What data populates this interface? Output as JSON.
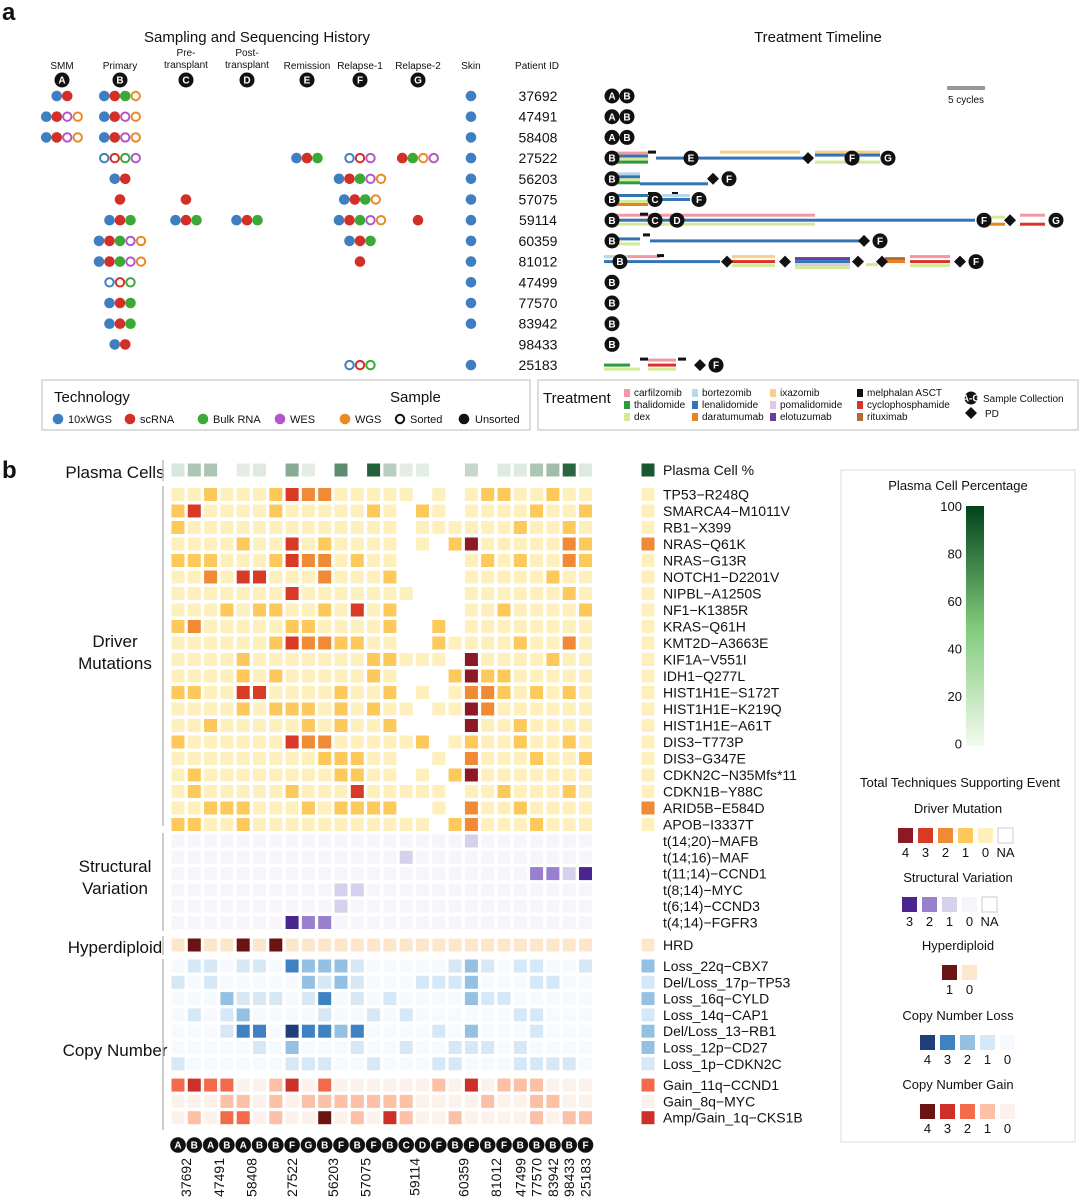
{
  "panel_a": {
    "label": "a",
    "sampling_title": "Sampling and Sequencing History",
    "treatment_title": "Treatment Timeline",
    "patient_id_header": "Patient ID",
    "skin_header": "Skin",
    "scale_label": "5 cycles",
    "stages": [
      {
        "name": "SMM",
        "letter": "A"
      },
      {
        "name": "Primary",
        "letter": "B"
      },
      {
        "name": "Pre-\ntransplant",
        "letter": "C"
      },
      {
        "name": "Post-\ntransplant",
        "letter": "D"
      },
      {
        "name": "Remission",
        "letter": "E"
      },
      {
        "name": "Relapse-1",
        "letter": "F"
      },
      {
        "name": "Relapse-2",
        "letter": "G"
      }
    ],
    "patients": [
      {
        "id": "37692",
        "samples": {
          "A": [
            "bu",
            "ru"
          ],
          "B": [
            "bu",
            "ru",
            "gu",
            "os"
          ]
        },
        "skin": true,
        "timeline": [
          "A",
          "B"
        ]
      },
      {
        "id": "47491",
        "samples": {
          "A": [
            "bu",
            "ru",
            "ps",
            "os"
          ],
          "B": [
            "bu",
            "ru",
            "ps",
            "os"
          ]
        },
        "skin": true,
        "timeline": [
          "A",
          "B"
        ]
      },
      {
        "id": "58408",
        "samples": {
          "A": [
            "bu",
            "ru",
            "ps",
            "os"
          ],
          "B": [
            "bu",
            "ru",
            "ps",
            "os"
          ]
        },
        "skin": true,
        "timeline": [
          "A",
          "B"
        ]
      },
      {
        "id": "27522",
        "samples": {
          "B": [
            "bs",
            "rs",
            "gs",
            "ps"
          ],
          "E": [
            "bu",
            "ru",
            "gu"
          ],
          "F": [
            "bs",
            "rs",
            "ps"
          ],
          "G": [
            "ru",
            "gu",
            "os",
            "ps"
          ]
        },
        "skin": true,
        "timeline": [
          "B",
          "E",
          "F",
          "G"
        ]
      },
      {
        "id": "56203",
        "samples": {
          "B": [
            "bu",
            "ru"
          ],
          "F": [
            "bu",
            "ru",
            "gu",
            "ps",
            "os"
          ]
        },
        "skin": true,
        "timeline": [
          "B",
          "F"
        ]
      },
      {
        "id": "57075",
        "samples": {
          "B": [
            "ru"
          ],
          "C": [
            "ru"
          ],
          "F": [
            "bu",
            "ru",
            "gu",
            "os"
          ]
        },
        "skin": true,
        "timeline": [
          "B",
          "C",
          "F"
        ]
      },
      {
        "id": "59114",
        "samples": {
          "B": [
            "bu",
            "ru",
            "gu"
          ],
          "C": [
            "bu",
            "ru",
            "gu"
          ],
          "D": [
            "bu",
            "ru",
            "gu"
          ],
          "F": [
            "bu",
            "ru",
            "gu",
            "ps",
            "os"
          ],
          "G": [
            "ru"
          ]
        },
        "skin": true,
        "timeline": [
          "B",
          "C",
          "D",
          "F",
          "G"
        ]
      },
      {
        "id": "60359",
        "samples": {
          "B": [
            "bu",
            "ru",
            "gu",
            "ps",
            "os"
          ],
          "F": [
            "bu",
            "ru",
            "gu"
          ]
        },
        "skin": true,
        "timeline": [
          "B",
          "F"
        ]
      },
      {
        "id": "81012",
        "samples": {
          "B": [
            "bu",
            "ru",
            "gu",
            "ps",
            "os"
          ],
          "F": [
            "ru"
          ]
        },
        "skin": true,
        "timeline": [
          "B",
          "F"
        ]
      },
      {
        "id": "47499",
        "samples": {
          "B": [
            "bs",
            "rs",
            "gs"
          ]
        },
        "skin": true,
        "timeline": [
          "B"
        ]
      },
      {
        "id": "77570",
        "samples": {
          "B": [
            "bu",
            "ru",
            "gu"
          ]
        },
        "skin": true,
        "timeline": [
          "B"
        ]
      },
      {
        "id": "83942",
        "samples": {
          "B": [
            "bu",
            "ru",
            "gu"
          ]
        },
        "skin": true,
        "timeline": [
          "B"
        ]
      },
      {
        "id": "98433",
        "samples": {
          "B": [
            "bu",
            "ru"
          ]
        },
        "skin": false,
        "timeline": [
          "B"
        ]
      },
      {
        "id": "25183",
        "samples": {
          "F": [
            "bs",
            "rs",
            "gs"
          ]
        },
        "skin": true,
        "timeline": [
          "F"
        ]
      }
    ],
    "technology_legend": {
      "title": "Technology",
      "items": [
        {
          "label": "10xWGS",
          "color": "#3f7fc1"
        },
        {
          "label": "scRNA",
          "color": "#d42f26"
        },
        {
          "label": "Bulk RNA",
          "color": "#3aa935"
        },
        {
          "label": "WES",
          "color": "#b157c8"
        },
        {
          "label": "WGS",
          "color": "#ea8a24"
        }
      ]
    },
    "sample_legend": {
      "title": "Sample",
      "items": [
        {
          "label": "Sorted"
        },
        {
          "label": "Unsorted"
        }
      ]
    },
    "treatment_legend": {
      "title": "Treatment",
      "items": [
        {
          "label": "carfilzomib",
          "color": "#f29aa3"
        },
        {
          "label": "thalidomide",
          "color": "#2e9a3c"
        },
        {
          "label": "dex",
          "color": "#d3ea9b"
        },
        {
          "label": "bortezomib",
          "color": "#b8d7e8"
        },
        {
          "label": "lenalidomide",
          "color": "#3474b5"
        },
        {
          "label": "daratumumab",
          "color": "#e8831f"
        },
        {
          "label": "ixazomib",
          "color": "#f8cf86"
        },
        {
          "label": "pomalidomide",
          "color": "#e2c6e3"
        },
        {
          "label": "elotuzumab",
          "color": "#6a3ea1"
        },
        {
          "label": "melphalan ASCT",
          "color": "#111111"
        },
        {
          "label": "cyclophosphamide",
          "color": "#d9342b"
        },
        {
          "label": "rituximab",
          "color": "#b56a35"
        }
      ],
      "sample_collection_label": "Sample Collection",
      "sample_collection_glyph": "A-G",
      "pd_label": "PD"
    }
  },
  "panel_b": {
    "label": "b",
    "sections": [
      {
        "name": "Plasma Cells",
        "rows": [
          "Plasma Cell %"
        ]
      },
      {
        "name": "Driver\nMutations",
        "rows": [
          "TP53−R248Q",
          "SMARCA4−M1011V",
          "RB1−X399",
          "NRAS−Q61K",
          "NRAS−G13R",
          "NOTCH1−D2201V",
          "NIPBL−A1250S",
          "NF1−K1385R",
          "KRAS−Q61H",
          "KMT2D−A3663E",
          "KIF1A−V551I",
          "IDH1−Q277L",
          "HIST1H1E−S172T",
          "HIST1H1E−K219Q",
          "HIST1H1E−A61T",
          "DIS3−T773P",
          "DIS3−G347E",
          "CDKN2C−N35Mfs*11",
          "CDKN1B−Y88C",
          "ARID5B−E584D",
          "APOB−I3337T"
        ]
      },
      {
        "name": "Structural\nVariation",
        "rows": [
          "t(14;20)−MAFB",
          "t(14;16)−MAF",
          "t(11;14)−CCND1",
          "t(8;14)−MYC",
          "t(6;14)−CCND3",
          "t(4;14)−FGFR3"
        ]
      },
      {
        "name": "Hyperdiploid",
        "rows": [
          "HRD"
        ]
      },
      {
        "name": "Copy Number",
        "rows": [
          "Loss_22q−CBX7",
          "Del/Loss_17p−TP53",
          "Loss_16q−CYLD",
          "Loss_14q−CAP1",
          "Del/Loss_13−RB1",
          "Loss_12p−CD27",
          "Loss_1p−CDKN2C",
          "Gain_11q−CCND1",
          "Gain_8q−MYC",
          "Amp/Gain_1q−CKS1B"
        ]
      }
    ],
    "columns": [
      {
        "patient": "37692",
        "samples": [
          "A",
          "B"
        ]
      },
      {
        "patient": "47491",
        "samples": [
          "A",
          "B"
        ]
      },
      {
        "patient": "58408",
        "samples": [
          "A",
          "B"
        ]
      },
      {
        "patient": "27522",
        "samples": [
          "B",
          "F",
          "G"
        ]
      },
      {
        "patient": "56203",
        "samples": [
          "B",
          "F"
        ]
      },
      {
        "patient": "57075",
        "samples": [
          "B",
          "F"
        ]
      },
      {
        "patient": "59114",
        "samples": [
          "B",
          "C",
          "D",
          "F"
        ]
      },
      {
        "patient": "60359",
        "samples": [
          "B",
          "F"
        ]
      },
      {
        "patient": "81012",
        "samples": [
          "B",
          "F"
        ]
      },
      {
        "patient": "47499",
        "samples": [
          "B"
        ]
      },
      {
        "patient": "77570",
        "samples": [
          "B"
        ]
      },
      {
        "patient": "83942",
        "samples": [
          "B"
        ]
      },
      {
        "patient": "98433",
        "samples": [
          "B"
        ]
      },
      {
        "patient": "25183",
        "samples": [
          "F"
        ]
      }
    ],
    "legend": {
      "plasma_title": "Plasma Cell Percentage",
      "plasma_ticks": [
        "100",
        "80",
        "60",
        "40",
        "20",
        "0"
      ],
      "techniques_title": "Total Techniques Supporting Event",
      "driver_title": "Driver Mutation",
      "driver_labels": [
        "4",
        "3",
        "2",
        "1",
        "0",
        "NA"
      ],
      "driver_colors": [
        "#8b1a25",
        "#d93a26",
        "#f08a35",
        "#fcc95a",
        "#fdf0bd",
        "#ffffff"
      ],
      "sv_title": "Structural Variation",
      "sv_labels": [
        "3",
        "2",
        "1",
        "0",
        "NA"
      ],
      "sv_colors": [
        "#4a2590",
        "#9a7fcf",
        "#d7d0ec",
        "#f7f5fb",
        "#ffffff"
      ],
      "hrd_title": "Hyperdiploid",
      "hrd_labels": [
        "1",
        "0"
      ],
      "hrd_colors": [
        "#6b1212",
        "#fde7cc"
      ],
      "cnl_title": "Copy Number Loss",
      "cnl_labels": [
        "4",
        "3",
        "2",
        "1",
        "0"
      ],
      "cnl_colors": [
        "#1f3d78",
        "#3f82c4",
        "#94c1e3",
        "#d6e7f5",
        "#f6f9fd"
      ],
      "cng_title": "Copy Number Gain",
      "cng_labels": [
        "4",
        "3",
        "2",
        "1",
        "0"
      ],
      "cng_colors": [
        "#6b1212",
        "#cc3028",
        "#f26a4a",
        "#fcc0a6",
        "#fdf1ec"
      ]
    }
  }
}
